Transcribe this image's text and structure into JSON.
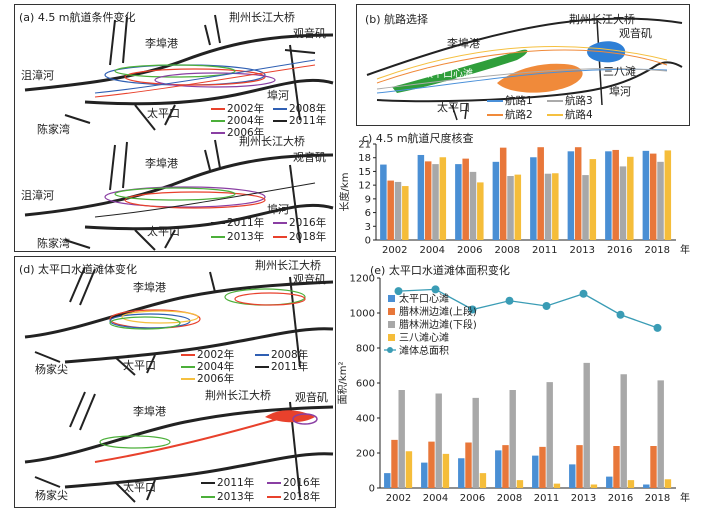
{
  "panel_a": {
    "title": "(a) 4.5 m航道条件变化",
    "places_top": {
      "bridge": "荆州长江大桥",
      "guanyinji": "观音矶",
      "lifugang": "李埠港",
      "jushanghe": "沮漳河",
      "fuhe": "埠河",
      "taipingkou": "太平口",
      "chenjiawan": "陈家湾"
    },
    "places_bottom": {
      "bridge": "荆州长江大桥",
      "guanyinji": "观音矶",
      "lifugang": "李埠港",
      "jushanghe": "沮漳河",
      "fuhe": "埠河",
      "taipingkou": "太平口",
      "chenjiawan": "陈家湾"
    },
    "legend_top": [
      {
        "label": "2002年",
        "color": "#e8412c"
      },
      {
        "label": "2008年",
        "color": "#2f5fb3"
      },
      {
        "label": "2004年",
        "color": "#4caf3a"
      },
      {
        "label": "2011年",
        "color": "#222222"
      },
      {
        "label": "2006年",
        "color": "#8a3fa3"
      }
    ],
    "legend_bottom": [
      {
        "label": "2011年",
        "color": "#222222"
      },
      {
        "label": "2016年",
        "color": "#8a3fa3"
      },
      {
        "label": "2013年",
        "color": "#4caf3a"
      },
      {
        "label": "2018年",
        "color": "#e8412c"
      }
    ]
  },
  "panel_b": {
    "title": "(b) 航路选择",
    "places": {
      "bridge": "荆州长江大桥",
      "guanyinji": "观音矶",
      "lifugang": "李埠港",
      "taipingkou_bar": "太平口心滩",
      "sanba": "三八滩",
      "fuhe": "埠河",
      "taipingkou": "太平口"
    },
    "legend": [
      {
        "label": "航路1",
        "color": "#4a90d9"
      },
      {
        "label": "航路3",
        "color": "#aaaaaa"
      },
      {
        "label": "航路2",
        "color": "#f08a3a"
      },
      {
        "label": "航路4",
        "color": "#f5c040"
      }
    ]
  },
  "panel_d": {
    "title": "(d) 太平口水道滩体变化",
    "places_top": {
      "bridge": "荆州长江大桥",
      "guanyinji": "观音矶",
      "lifugang": "李埠港",
      "yangjiajian": "杨家尖",
      "taipingkou": "太平口"
    },
    "places_bottom": {
      "bridge": "荆州长江大桥",
      "guanyinji": "观音矶",
      "lifugang": "李埠港",
      "yangjiajian": "杨家尖",
      "taipingkou": "太平口"
    },
    "legend_top": [
      {
        "label": "2002年",
        "color": "#e8412c"
      },
      {
        "label": "2008年",
        "color": "#2f5fb3"
      },
      {
        "label": "2004年",
        "color": "#4caf3a"
      },
      {
        "label": "2011年",
        "color": "#222222"
      },
      {
        "label": "2006年",
        "color": "#f5c040"
      }
    ],
    "legend_bottom": [
      {
        "label": "2011年",
        "color": "#222222"
      },
      {
        "label": "2016年",
        "color": "#8a3fa3"
      },
      {
        "label": "2013年",
        "color": "#4caf3a"
      },
      {
        "label": "2018年",
        "color": "#e8412c"
      }
    ]
  },
  "chart_data": [
    {
      "type": "bar",
      "title": "c) 4.5 m航道尺度核查",
      "ylabel": "长度/km",
      "xlabel": "年",
      "categories": [
        "2002",
        "2004",
        "2006",
        "2008",
        "2011",
        "2013",
        "2016",
        "2018"
      ],
      "ylim": [
        0,
        21
      ],
      "yticks": [
        0,
        3,
        6,
        9,
        12,
        15,
        18,
        21
      ],
      "grid": false,
      "series": [
        {
          "color": "#4a8fd4",
          "values": [
            16.5,
            18.6,
            16.6,
            17.1,
            18.1,
            19.4,
            19.4,
            19.5
          ]
        },
        {
          "color": "#e8773a",
          "values": [
            13.0,
            17.2,
            17.8,
            20.2,
            20.3,
            20.3,
            19.7,
            18.9
          ]
        },
        {
          "color": "#a8a8a8",
          "values": [
            12.7,
            16.6,
            14.9,
            14.0,
            14.5,
            14.2,
            16.1,
            17.1
          ]
        },
        {
          "color": "#f5bd3a",
          "values": [
            11.8,
            18.1,
            12.6,
            14.3,
            14.6,
            17.7,
            18.2,
            19.6
          ]
        }
      ]
    },
    {
      "type": "bar",
      "title": "(e) 太平口水道滩体面积变化",
      "ylabel": "面积/km²",
      "xlabel": "年",
      "categories": [
        "2002",
        "2004",
        "2006",
        "2008",
        "2011",
        "2013",
        "2016",
        "2018"
      ],
      "ylim": [
        0,
        1200
      ],
      "yticks": [
        0,
        200,
        400,
        600,
        800,
        1000,
        1200
      ],
      "legend_position": "top-left",
      "series": [
        {
          "name": "太平口心滩",
          "color": "#4a8fd4",
          "values": [
            85,
            145,
            170,
            215,
            185,
            135,
            65,
            20
          ]
        },
        {
          "name": "腊林洲边滩(上段)",
          "color": "#e8773a",
          "values": [
            275,
            265,
            260,
            245,
            235,
            245,
            240,
            240
          ]
        },
        {
          "name": "腊林洲边滩(下段)",
          "color": "#a8a8a8",
          "values": [
            560,
            540,
            515,
            560,
            605,
            715,
            650,
            615
          ]
        },
        {
          "name": "三八滩心滩",
          "color": "#f5bd3a",
          "values": [
            210,
            195,
            85,
            45,
            25,
            20,
            45,
            50
          ]
        }
      ],
      "line_series": {
        "name": "滩体总面积",
        "color": "#3a9cb5",
        "values": [
          1125,
          1135,
          1020,
          1070,
          1040,
          1110,
          990,
          915
        ]
      }
    }
  ]
}
